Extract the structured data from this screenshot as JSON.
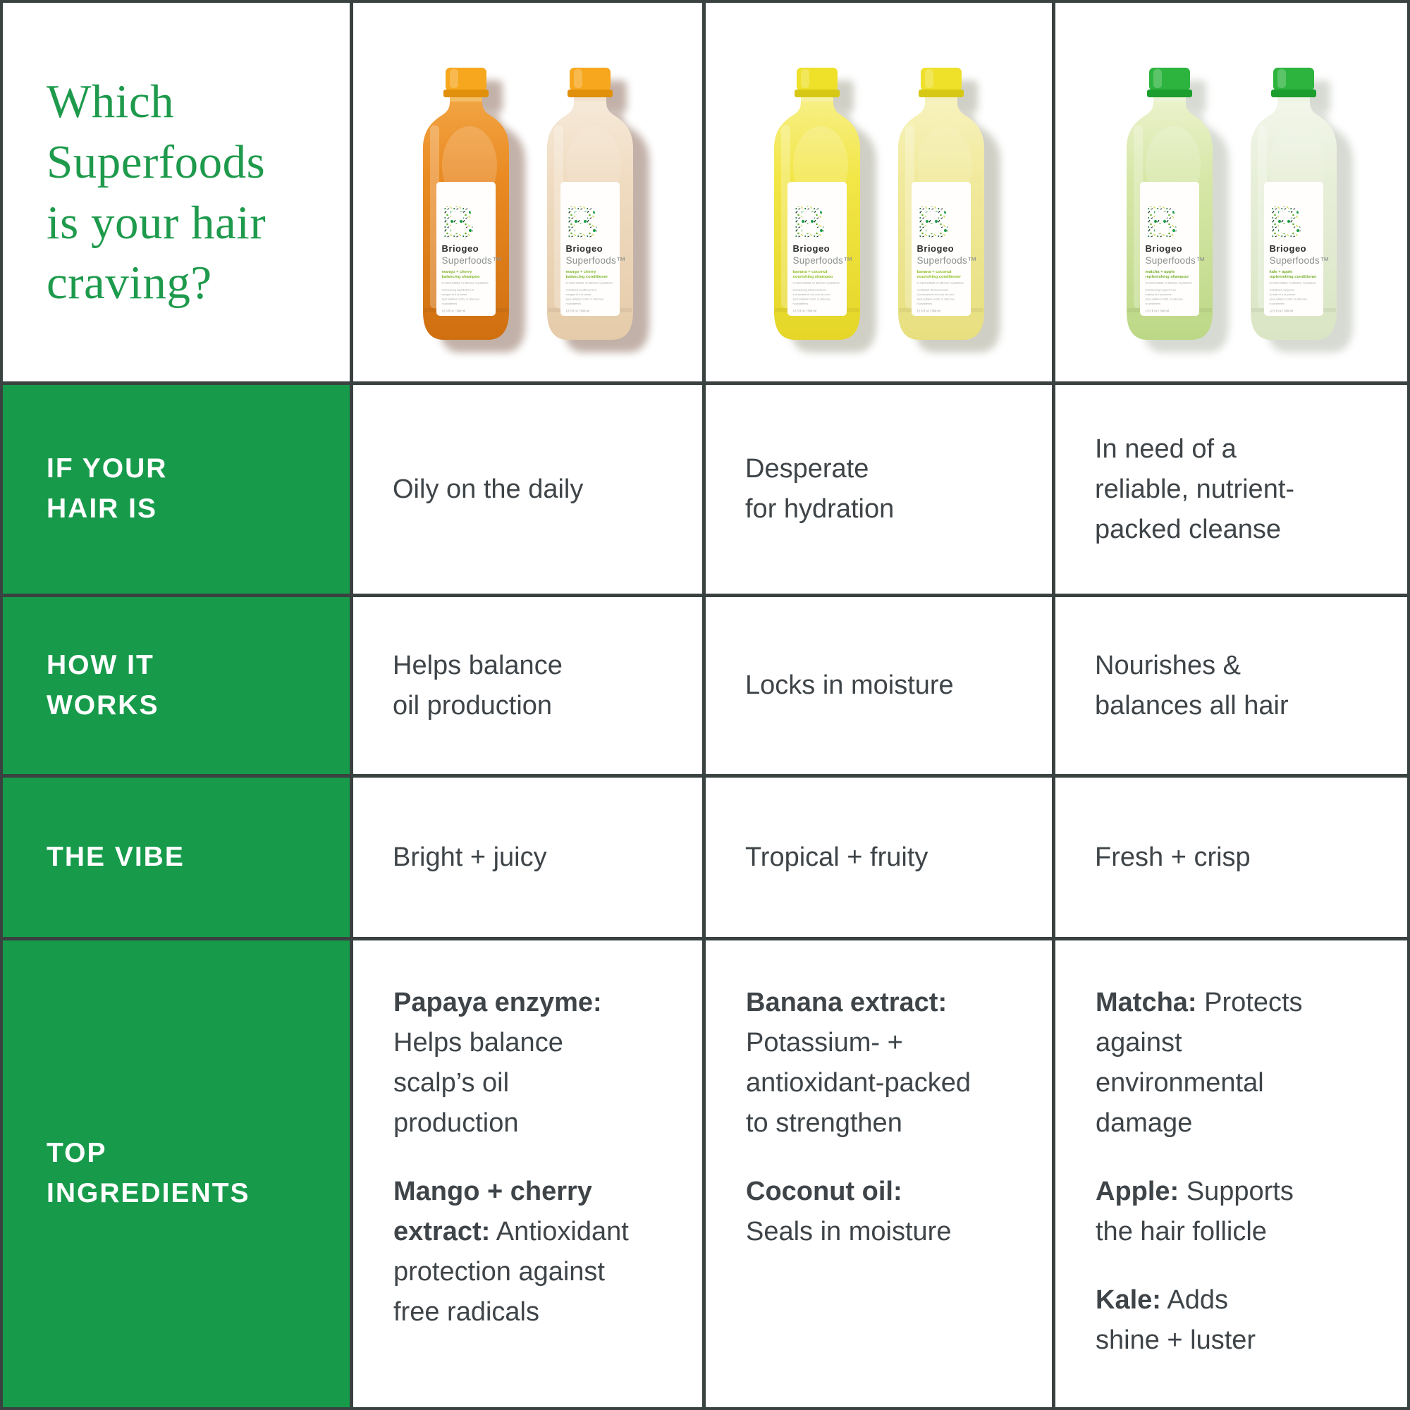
{
  "colors": {
    "green_cell": "#179B4B",
    "title_green": "#1E9A4C",
    "text_dark": "#3E4448",
    "border": "#3A4141"
  },
  "title": {
    "lines": [
      "Which",
      "Superfoods",
      "is your hair",
      "craving?"
    ]
  },
  "row_headers": [
    {
      "lines": [
        "IF YOUR",
        "HAIR IS"
      ]
    },
    {
      "lines": [
        "HOW IT",
        "WORKS"
      ]
    },
    {
      "lines": [
        "THE VIBE"
      ]
    },
    {
      "lines": [
        "TOP",
        "INGREDIENTS"
      ]
    }
  ],
  "hair_is": [
    [
      "Oily on the daily"
    ],
    [
      "Desperate",
      "for hydration"
    ],
    [
      "In need of a",
      "reliable, nutrient-",
      "packed cleanse"
    ]
  ],
  "how_it_works": [
    [
      "Helps balance",
      "oil production"
    ],
    [
      "Locks in moisture"
    ],
    [
      "Nourishes &",
      "balances all hair"
    ]
  ],
  "the_vibe": [
    [
      "Bright + juicy"
    ],
    [
      "Tropical + fruity"
    ],
    [
      "Fresh + crisp"
    ]
  ],
  "top_ingredients": [
    [
      {
        "lines": [
          [
            [
              1,
              "Papaya enzyme:"
            ]
          ],
          [
            [
              0,
              "Helps balance"
            ]
          ],
          [
            [
              0,
              "scalp’s oil"
            ]
          ],
          [
            [
              0,
              "production"
            ]
          ]
        ]
      },
      {
        "lines": [
          [
            [
              1,
              "Mango + cherry"
            ]
          ],
          [
            [
              1,
              "extract:"
            ],
            [
              0,
              " Antioxidant"
            ]
          ],
          [
            [
              0,
              "protection against"
            ]
          ],
          [
            [
              0,
              "free radicals"
            ]
          ]
        ]
      }
    ],
    [
      {
        "lines": [
          [
            [
              1,
              "Banana extract:"
            ]
          ],
          [
            [
              0,
              "Potassium- +"
            ]
          ],
          [
            [
              0,
              "antioxidant-packed"
            ]
          ],
          [
            [
              0,
              "to strengthen"
            ]
          ]
        ]
      },
      {
        "lines": [
          [
            [
              1,
              "Coconut oil:"
            ]
          ],
          [
            [
              0,
              "Seals in moisture"
            ]
          ]
        ]
      }
    ],
    [
      {
        "lines": [
          [
            [
              1,
              "Matcha:"
            ],
            [
              0,
              " Protects"
            ]
          ],
          [
            [
              0,
              "against"
            ]
          ],
          [
            [
              0,
              "environmental"
            ]
          ],
          [
            [
              0,
              "damage"
            ]
          ]
        ]
      },
      {
        "lines": [
          [
            [
              1,
              "Apple:"
            ],
            [
              0,
              " Supports"
            ]
          ],
          [
            [
              0,
              "the hair follicle"
            ]
          ]
        ]
      },
      {
        "lines": [
          [
            [
              1,
              "Kale:"
            ],
            [
              0,
              " Adds"
            ]
          ],
          [
            [
              0,
              "shine + luster"
            ]
          ]
        ]
      }
    ]
  ],
  "products": [
    {
      "shadow": "#6F4631",
      "bottles": [
        {
          "id": "mango-cherry-shampoo",
          "cap": "#F6A71E",
          "cap_dark": "#E1900C",
          "neck": "#F4BE66",
          "liq_top": "#F1A342",
          "liq_mid": "#EA8A22",
          "liq_bot": "#CF6F10",
          "opaque": false,
          "label": {
            "brand": "Briogeo",
            "line": "Superfoods™",
            "name_color": "#7FB52B",
            "name_lines": [
              "mango + cherry",
              "balancing shampoo"
            ],
            "claims": "no harsh sulfates, no silicones, no parabens",
            "detail_lines": [
              "shampooing équilibrant à la",
              "mangue et à la cerise",
              "sans sulfates nocifs, ni silicones,",
              "ni parabènes"
            ],
            "size": "12.5 fl oz / 369 ml"
          }
        },
        {
          "id": "mango-cherry-conditioner",
          "cap": "#F6A71E",
          "cap_dark": "#E1900C",
          "neck": "#F2E3D0",
          "liq_top": "#F6E9D8",
          "liq_mid": "#F0DCC2",
          "liq_bot": "#E5CBA9",
          "opaque": true,
          "label": {
            "brand": "Briogeo",
            "line": "Superfoods™",
            "name_color": "#7FB52B",
            "name_lines": [
              "mango + cherry",
              "balancing conditioner"
            ],
            "claims": "no harsh sulfates, no silicones, no parabens",
            "detail_lines": [
              "revitalisant équilibrant à la",
              "mangue et à la cerise",
              "sans sulfates nocifs, ni silicones,",
              "ni parabènes"
            ],
            "size": "12.5 fl oz / 369 ml"
          }
        }
      ]
    },
    {
      "shadow": "#8F8E76",
      "bottles": [
        {
          "id": "banana-coconut-shampoo",
          "cap": "#EFE02A",
          "cap_dark": "#D6C815",
          "neck": "#F7F2A2",
          "liq_top": "#F7EF83",
          "liq_mid": "#F2E647",
          "liq_bot": "#E5D627",
          "opaque": false,
          "label": {
            "brand": "Briogeo",
            "line": "Superfoods™",
            "name_color": "#8FBF25",
            "name_lines": [
              "banana + coconut",
              "nourishing shampoo"
            ],
            "claims": "no harsh sulfates, no silicones, no parabens",
            "detail_lines": [
              "shampooing ultranourrissant",
              "à la banane et à la noix de coco",
              "sans sulfates nocifs, ni silicones,",
              "ni parabènes"
            ],
            "size": "12.5 fl oz / 369 ml"
          }
        },
        {
          "id": "banana-coconut-conditioner",
          "cap": "#EFE02A",
          "cap_dark": "#D6C815",
          "neck": "#F5F0C0",
          "liq_top": "#F7F2BC",
          "liq_mid": "#F1EA9D",
          "liq_bot": "#E7DF7F",
          "opaque": true,
          "label": {
            "brand": "Briogeo",
            "line": "Superfoods™",
            "name_color": "#8FBF25",
            "name_lines": [
              "banana + coconut",
              "nourishing conditioner"
            ],
            "claims": "no harsh sulfates, no silicones, no parabens",
            "detail_lines": [
              "revitalisant ultranourrissant",
              "à la banane et à la noix de coco",
              "sans sulfates nocifs, ni silicones,",
              "ni parabènes"
            ],
            "size": "12.5 fl oz / 369 ml"
          }
        }
      ]
    },
    {
      "shadow": "#9FA896",
      "bottles": [
        {
          "id": "matcha-apple-shampoo",
          "cap": "#2DB43F",
          "cap_dark": "#1C9E2E",
          "neck": "#ECF3D6",
          "liq_top": "#EAF2CA",
          "liq_mid": "#D7E7A8",
          "liq_bot": "#BCD886",
          "opaque": false,
          "label": {
            "brand": "Briogeo",
            "line": "Superfoods™",
            "name_color": "#76B02C",
            "name_lines": [
              "matcha + apple",
              "replenishing shampoo"
            ],
            "claims": "no harsh sulfates, no silicones, no parabens",
            "detail_lines": [
              "shampooing revigorant au",
              "matcha et à la pomme",
              "sans sulfates nocifs, ni silicones,",
              "ni parabènes"
            ],
            "size": "12.5 fl oz / 369 ml"
          }
        },
        {
          "id": "kale-apple-conditioner",
          "cap": "#2DB43F",
          "cap_dark": "#1C9E2E",
          "neck": "#EFF3E4",
          "liq_top": "#F2F6EA",
          "liq_mid": "#E8EFD9",
          "liq_bot": "#D9E5C4",
          "opaque": true,
          "label": {
            "brand": "Briogeo",
            "line": "Superfoods™",
            "name_color": "#76B02C",
            "name_lines": [
              "kale + apple",
              "replenishing conditioner"
            ],
            "claims": "no harsh sulfates, no silicones, no parabens",
            "detail_lines": [
              "revitalisant revigorant",
              "au kale et à la pomme",
              "sans sulfates nocifs, ni silicones,",
              "ni parabènes"
            ],
            "size": "12.5 fl oz / 369 ml"
          }
        }
      ]
    }
  ]
}
